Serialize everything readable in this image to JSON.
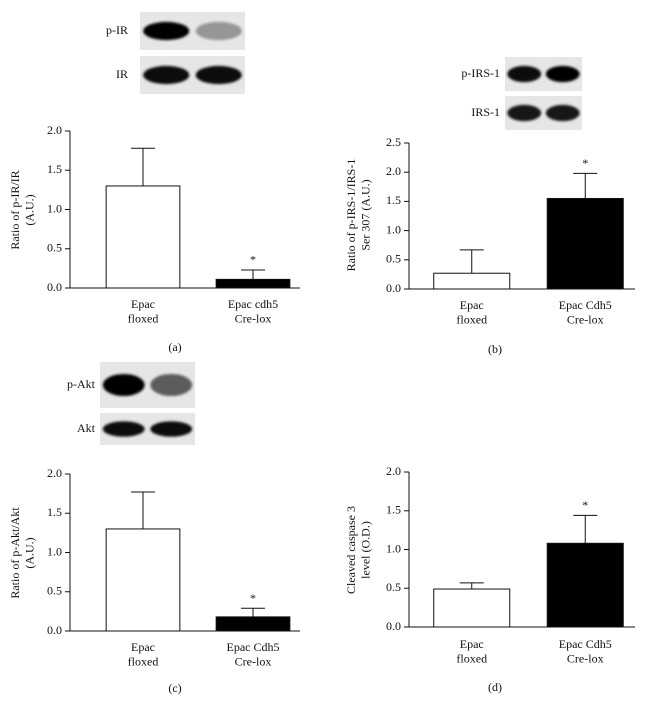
{
  "chart_data": [
    {
      "type": "bar",
      "ylabel": "Ratio of p-IR/IR\n(A.U.)",
      "panel_label": "(a)",
      "blot_labels": [
        "p-IR",
        "IR"
      ],
      "categories": [
        "Epac\nfloxed",
        "Epac cdh5\nCre-lox"
      ],
      "values": [
        1.3,
        0.11
      ],
      "errors": [
        0.48,
        0.12
      ],
      "annotations": [
        null,
        "*"
      ],
      "colors": [
        "#ffffff",
        "#000000"
      ],
      "ylim": [
        0,
        2
      ],
      "yticks": [
        {
          "value": 0,
          "label": "0.0"
        },
        {
          "value": 0.5,
          "label": "0.5"
        },
        {
          "value": 1,
          "label": "1.0"
        },
        {
          "value": 1.5,
          "label": "1.5"
        },
        {
          "value": 2,
          "label": "2.0"
        }
      ]
    },
    {
      "type": "bar",
      "ylabel": "Ratio of p-IRS-1/IRS-1\nSer 307 (A.U.)",
      "panel_label": "(b)",
      "blot_labels": [
        "p-IRS-1",
        "IRS-1"
      ],
      "categories": [
        "Epac\nfloxed",
        "Epac Cdh5\nCre-lox"
      ],
      "values": [
        0.27,
        1.55
      ],
      "errors": [
        0.4,
        0.43
      ],
      "annotations": [
        null,
        "*"
      ],
      "colors": [
        "#ffffff",
        "#000000"
      ],
      "ylim": [
        0,
        2.5
      ],
      "yticks": [
        {
          "value": 0,
          "label": "0.0"
        },
        {
          "value": 0.5,
          "label": "0.5"
        },
        {
          "value": 1,
          "label": "1.0"
        },
        {
          "value": 1.5,
          "label": "1.5"
        },
        {
          "value": 2,
          "label": "2.0"
        },
        {
          "value": 2.5,
          "label": "2.5"
        }
      ]
    },
    {
      "type": "bar",
      "ylabel": "Ratio of p-Akt/Akt\n(A.U.)",
      "panel_label": "(c)",
      "blot_labels": [
        "p-Akt",
        "Akt"
      ],
      "categories": [
        "Epac\nfloxed",
        "Epac Cdh5\nCre-lox"
      ],
      "values": [
        1.3,
        0.18
      ],
      "errors": [
        0.47,
        0.11
      ],
      "annotations": [
        null,
        "*"
      ],
      "colors": [
        "#ffffff",
        "#000000"
      ],
      "ylim": [
        0,
        2
      ],
      "yticks": [
        {
          "value": 0,
          "label": "0.0"
        },
        {
          "value": 0.5,
          "label": "0.5"
        },
        {
          "value": 1,
          "label": "1.0"
        },
        {
          "value": 1.5,
          "label": "1.5"
        },
        {
          "value": 2,
          "label": "2.0"
        }
      ]
    },
    {
      "type": "bar",
      "ylabel": "Cleaved caspase 3\nlevel (O.D.)",
      "panel_label": "(d)",
      "categories": [
        "Epac\nfloxed",
        "Epac Cdh5\nCre-lox"
      ],
      "values": [
        0.49,
        1.08
      ],
      "errors": [
        0.08,
        0.36
      ],
      "annotations": [
        null,
        "*"
      ],
      "colors": [
        "#ffffff",
        "#000000"
      ],
      "ylim": [
        0,
        2
      ],
      "yticks": [
        {
          "value": 0,
          "label": "0.0"
        },
        {
          "value": 0.5,
          "label": "0.5"
        },
        {
          "value": 1,
          "label": "1.0"
        },
        {
          "value": 1.5,
          "label": "1.5"
        },
        {
          "value": 2,
          "label": "2.0"
        }
      ]
    }
  ]
}
